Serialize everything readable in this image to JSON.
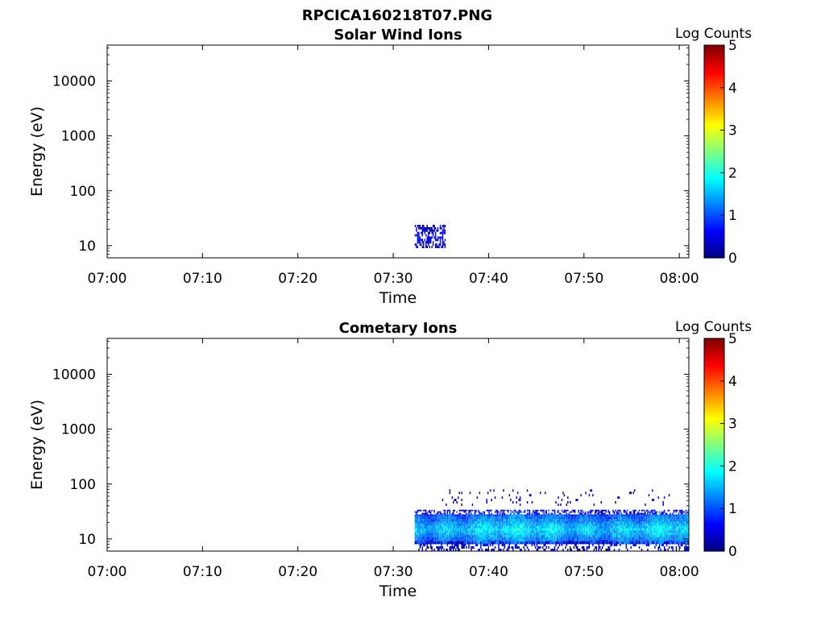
{
  "figure_title": "RPCICA160218T07.PNG",
  "chart_data": [
    {
      "type": "heatmap",
      "title": "Solar Wind Ions",
      "xlabel": "Time",
      "ylabel": "Energy (eV)",
      "x_ticks": [
        "07:00",
        "07:10",
        "07:20",
        "07:30",
        "07:40",
        "07:50",
        "08:00"
      ],
      "xlim": [
        "07:00",
        "08:01"
      ],
      "y_scale": "log",
      "y_ticks": [
        10,
        100,
        1000,
        10000
      ],
      "ylim": [
        6,
        45000
      ],
      "colorbar": {
        "label": "Log Counts",
        "ticks": [
          0,
          1,
          2,
          3,
          4,
          5
        ],
        "range": [
          0,
          5
        ],
        "colormap": "jet"
      },
      "regions": [
        {
          "t_start": "07:32:15",
          "t_end": "07:35:30",
          "e_low": 9,
          "e_high": 24,
          "log_counts_range": [
            0.2,
            0.9
          ],
          "density": 0.6
        }
      ]
    },
    {
      "type": "heatmap",
      "title": "Cometary Ions",
      "xlabel": "Time",
      "ylabel": "Energy (eV)",
      "x_ticks": [
        "07:00",
        "07:10",
        "07:20",
        "07:30",
        "07:40",
        "07:50",
        "08:00"
      ],
      "xlim": [
        "07:00",
        "08:01"
      ],
      "y_scale": "log",
      "y_ticks": [
        10,
        100,
        1000,
        10000
      ],
      "ylim": [
        6,
        45000
      ],
      "colorbar": {
        "label": "Log Counts",
        "ticks": [
          0,
          1,
          2,
          3,
          4,
          5
        ],
        "range": [
          0,
          5
        ],
        "colormap": "jet"
      },
      "regions": [
        {
          "t_start": "07:32:15",
          "t_end": "08:01:00",
          "e_low": 8,
          "e_high": 28,
          "log_counts_range": [
            0.7,
            2.0
          ],
          "density": 1.0
        },
        {
          "t_start": "07:32:15",
          "t_end": "08:01:00",
          "e_low": 6,
          "e_high": 9,
          "log_counts_range": [
            0.1,
            0.7
          ],
          "density": 0.35
        },
        {
          "t_start": "07:32:15",
          "t_end": "08:01:00",
          "e_low": 28,
          "e_high": 34,
          "log_counts_range": [
            0.2,
            0.8
          ],
          "density": 0.5
        },
        {
          "t_start": "07:35:00",
          "t_end": "08:00:00",
          "e_low": 40,
          "e_high": 80,
          "log_counts_range": [
            0.1,
            0.5
          ],
          "density": 0.05
        }
      ]
    }
  ]
}
